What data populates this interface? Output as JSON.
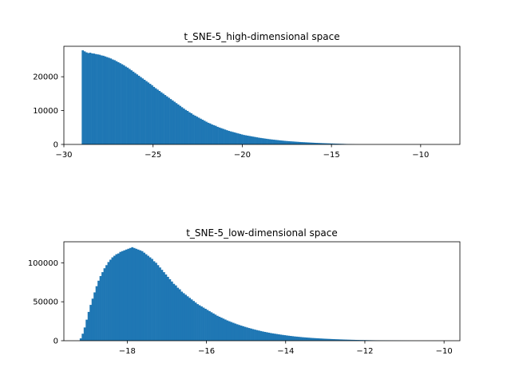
{
  "chart_data": [
    {
      "type": "histogram",
      "title": "t_SNE-5_high-dimensional space",
      "xlabel": "",
      "ylabel": "",
      "xlim": [
        -30,
        -7.8
      ],
      "ylim": [
        0,
        29000
      ],
      "xticks": [
        -30,
        -25,
        -20,
        -15,
        -10
      ],
      "xtick_labels": [
        "−30",
        "−25",
        "−20",
        "−15",
        "−10"
      ],
      "yticks": [
        0,
        10000,
        20000
      ],
      "ytick_labels": [
        "0",
        "10000",
        "20000"
      ],
      "color": "#1f77b4",
      "grid": false,
      "bin_start": -29.0,
      "bin_width": 0.105,
      "values": [
        27800,
        27500,
        27200,
        27000,
        27100,
        26900,
        26850,
        26700,
        26600,
        26500,
        26300,
        26200,
        26000,
        25800,
        25600,
        25400,
        25100,
        24900,
        24600,
        24300,
        24000,
        23700,
        23400,
        23000,
        22700,
        22300,
        21900,
        21500,
        21100,
        20700,
        20300,
        19900,
        19500,
        19100,
        18700,
        18300,
        17900,
        17500,
        17000,
        16600,
        16200,
        15800,
        15400,
        15000,
        14600,
        14200,
        13800,
        13400,
        13000,
        12600,
        12200,
        11800,
        11400,
        11000,
        10600,
        10200,
        9900,
        9500,
        9200,
        8800,
        8500,
        8200,
        7900,
        7600,
        7300,
        7000,
        6700,
        6400,
        6200,
        5900,
        5700,
        5500,
        5200,
        5000,
        4800,
        4600,
        4400,
        4200,
        4000,
        3850,
        3700,
        3550,
        3400,
        3250,
        3100,
        2950,
        2800,
        2700,
        2600,
        2500,
        2400,
        2300,
        2200,
        2100,
        2000,
        1920,
        1840,
        1760,
        1680,
        1600,
        1530,
        1460,
        1400,
        1340,
        1280,
        1220,
        1160,
        1100,
        1050,
        1000,
        960,
        920,
        880,
        840,
        800,
        760,
        720,
        690,
        660,
        630,
        600,
        570,
        540,
        510,
        480,
        455,
        430,
        405,
        380,
        360,
        340,
        320,
        300,
        280,
        260,
        240,
        220,
        200,
        180,
        160,
        140,
        120,
        100,
        80,
        60,
        40,
        20,
        10,
        5,
        2
      ]
    },
    {
      "type": "histogram",
      "title": "t_SNE-5_low-dimensional space",
      "xlabel": "",
      "ylabel": "",
      "xlim": [
        -19.6,
        -9.6
      ],
      "ylim": [
        0,
        127000
      ],
      "xticks": [
        -18,
        -16,
        -14,
        -12,
        -10
      ],
      "xtick_labels": [
        "−18",
        "−16",
        "−14",
        "−12",
        "−10"
      ],
      "yticks": [
        0,
        50000,
        100000
      ],
      "ytick_labels": [
        "0",
        "50000",
        "100000"
      ],
      "color": "#1f77b4",
      "grid": false,
      "bin_start": -19.2,
      "bin_width": 0.05,
      "values": [
        3000,
        9000,
        17000,
        27000,
        37000,
        46000,
        54000,
        62000,
        70000,
        77000,
        83000,
        88000,
        93000,
        97000,
        101000,
        104000,
        107000,
        109000,
        111000,
        112000,
        114000,
        115000,
        116000,
        117000,
        118000,
        119000,
        120000,
        119000,
        118000,
        117000,
        116000,
        115000,
        113000,
        111000,
        109000,
        107000,
        105000,
        102000,
        100000,
        97000,
        94000,
        91000,
        88000,
        85000,
        82000,
        79000,
        76000,
        73000,
        71000,
        68000,
        66000,
        63000,
        61000,
        59000,
        57000,
        55000,
        53000,
        51000,
        49000,
        47000,
        45500,
        44000,
        42500,
        41000,
        39500,
        38000,
        36500,
        35000,
        33500,
        32000,
        30800,
        29600,
        28400,
        27200,
        26000,
        25000,
        24000,
        23000,
        22000,
        21100,
        20200,
        19400,
        18600,
        17800,
        17000,
        16300,
        15600,
        14900,
        14200,
        13600,
        13000,
        12400,
        11800,
        11300,
        10800,
        10300,
        9800,
        9400,
        9000,
        8600,
        8200,
        7800,
        7450,
        7100,
        6750,
        6400,
        6100,
        5800,
        5500,
        5250,
        5000,
        4750,
        4500,
        4300,
        4100,
        3900,
        3700,
        3500,
        3350,
        3200,
        3050,
        2900,
        2750,
        2600,
        2480,
        2360,
        2240,
        2120,
        2000,
        1900,
        1800,
        1700,
        1600,
        1510,
        1420,
        1340,
        1260,
        1180,
        1110,
        1040,
        980,
        920,
        860,
        800,
        750,
        700,
        650,
        600,
        560,
        520,
        480,
        440,
        400,
        370,
        340,
        310,
        280,
        255,
        230,
        205,
        180,
        160,
        140,
        120,
        100,
        85,
        70,
        55,
        40,
        30,
        20,
        12,
        6,
        3
      ]
    }
  ]
}
